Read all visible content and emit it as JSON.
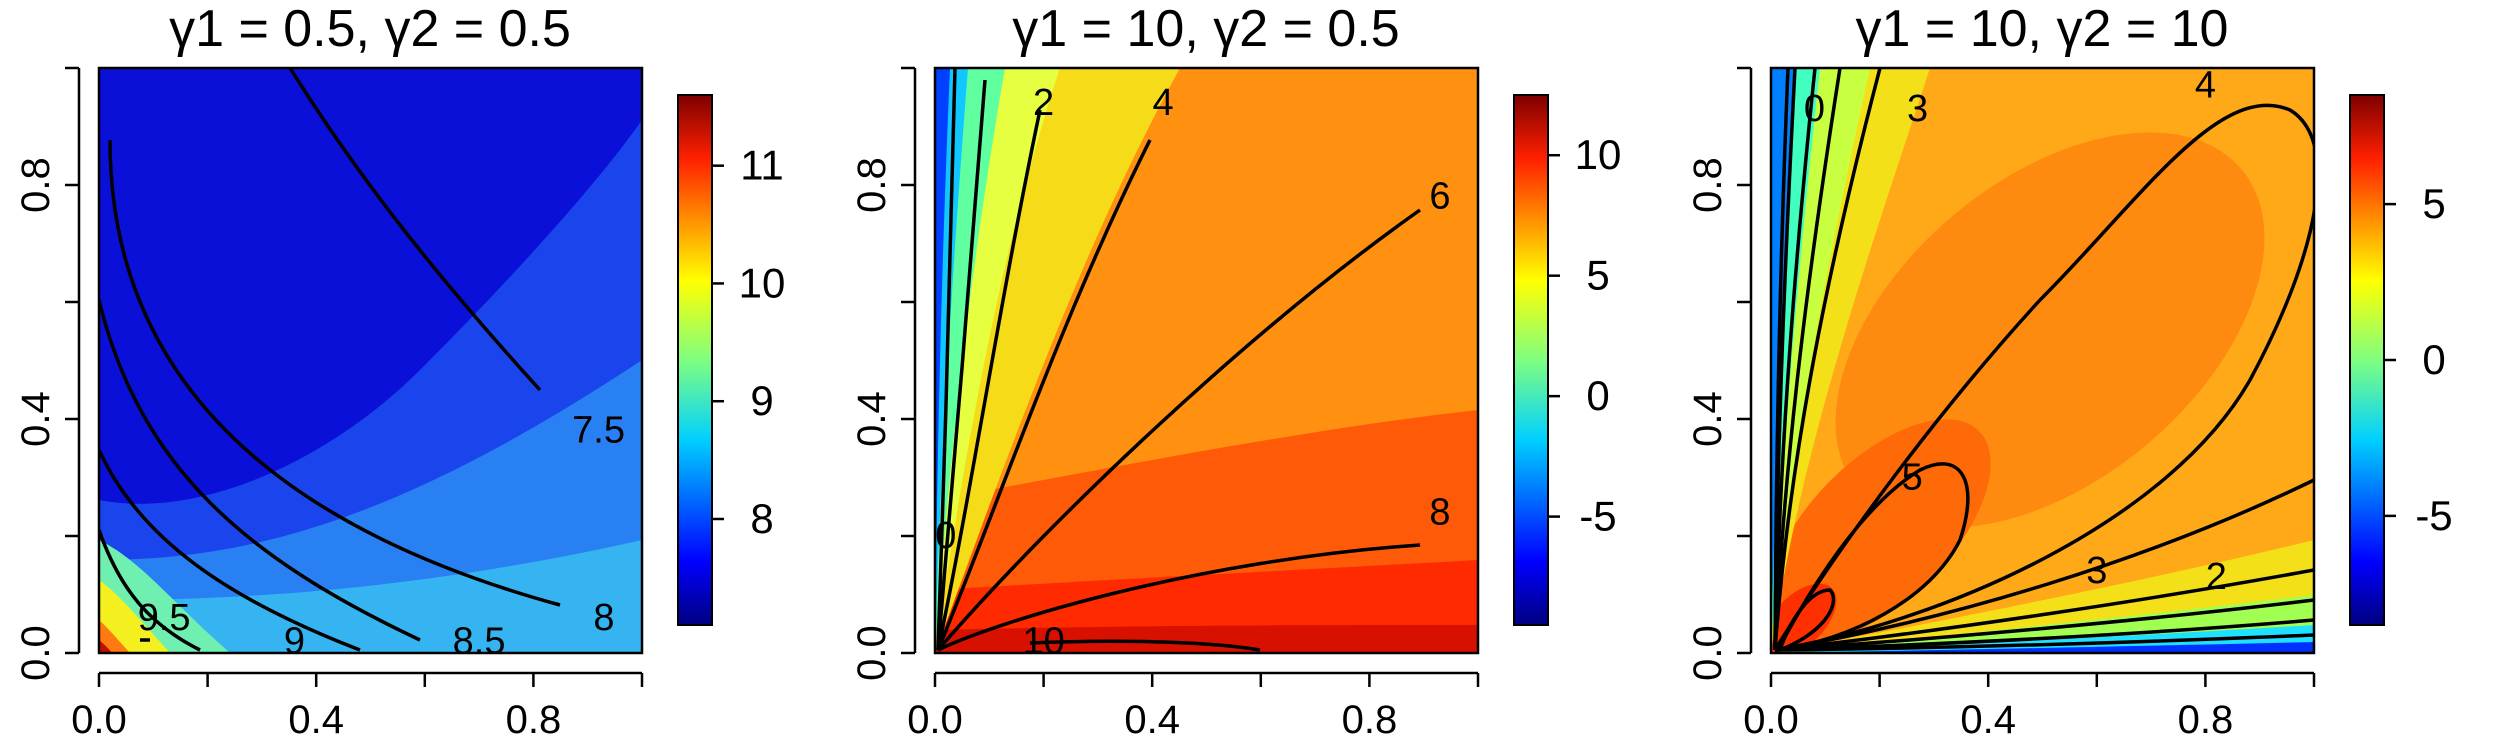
{
  "chart_data": [
    {
      "type": "heatmap",
      "title": "γ1 = 0.5, γ2 = 0.5",
      "xlabel": "",
      "ylabel": "",
      "xlim": [
        0,
        1
      ],
      "ylim": [
        0,
        1
      ],
      "x_ticks": [
        "0.0",
        "0.4",
        "0.8"
      ],
      "y_ticks": [
        "0.0",
        "0.4",
        "0.8"
      ],
      "colorbar": {
        "range": [
          7.1,
          11.6
        ],
        "ticks": [
          "8",
          "9",
          "10",
          "11"
        ],
        "tick_values": [
          8,
          9,
          10,
          11
        ]
      },
      "contour_labels": [
        "7.5",
        "8",
        "8.5",
        "9",
        "9.5"
      ],
      "contour_label_pos": [
        [
          0.92,
          0.38
        ],
        [
          0.93,
          0.06
        ],
        [
          0.7,
          0.02
        ],
        [
          0.36,
          0.02
        ],
        [
          0.12,
          0.06
        ]
      ]
    },
    {
      "type": "heatmap",
      "title": "γ1 = 10, γ2 = 0.5",
      "xlabel": "",
      "ylabel": "",
      "xlim": [
        0,
        1
      ],
      "ylim": [
        0,
        1
      ],
      "x_ticks": [
        "0.0",
        "0.4",
        "0.8"
      ],
      "y_ticks": [
        "0.0",
        "0.4",
        "0.8"
      ],
      "colorbar": {
        "range": [
          -9.5,
          12.5
        ],
        "ticks": [
          "-5",
          "0",
          "5",
          "10"
        ],
        "tick_values": [
          -5,
          0,
          5,
          10
        ]
      },
      "contour_labels": [
        "0",
        "2",
        "4",
        "6",
        "8",
        "10"
      ],
      "contour_label_pos": [
        [
          0.02,
          0.2
        ],
        [
          0.2,
          0.94
        ],
        [
          0.42,
          0.94
        ],
        [
          0.93,
          0.78
        ],
        [
          0.93,
          0.24
        ],
        [
          0.2,
          0.02
        ]
      ]
    },
    {
      "type": "heatmap",
      "title": "γ1 = 10, γ2 = 10",
      "xlabel": "",
      "ylabel": "",
      "xlim": [
        0,
        1
      ],
      "ylim": [
        0,
        1
      ],
      "x_ticks": [
        "0.0",
        "0.4",
        "0.8"
      ],
      "y_ticks": [
        "0.0",
        "0.4",
        "0.8"
      ],
      "colorbar": {
        "range": [
          -8.5,
          8.5
        ],
        "ticks": [
          "-5",
          "0",
          "5"
        ],
        "tick_values": [
          -5,
          0,
          5
        ]
      },
      "contour_labels": [
        "0",
        "3",
        "4",
        "5",
        "3",
        "2"
      ],
      "contour_label_pos": [
        [
          0.08,
          0.93
        ],
        [
          0.27,
          0.93
        ],
        [
          0.8,
          0.97
        ],
        [
          0.26,
          0.3
        ],
        [
          0.6,
          0.14
        ],
        [
          0.82,
          0.13
        ]
      ]
    }
  ]
}
